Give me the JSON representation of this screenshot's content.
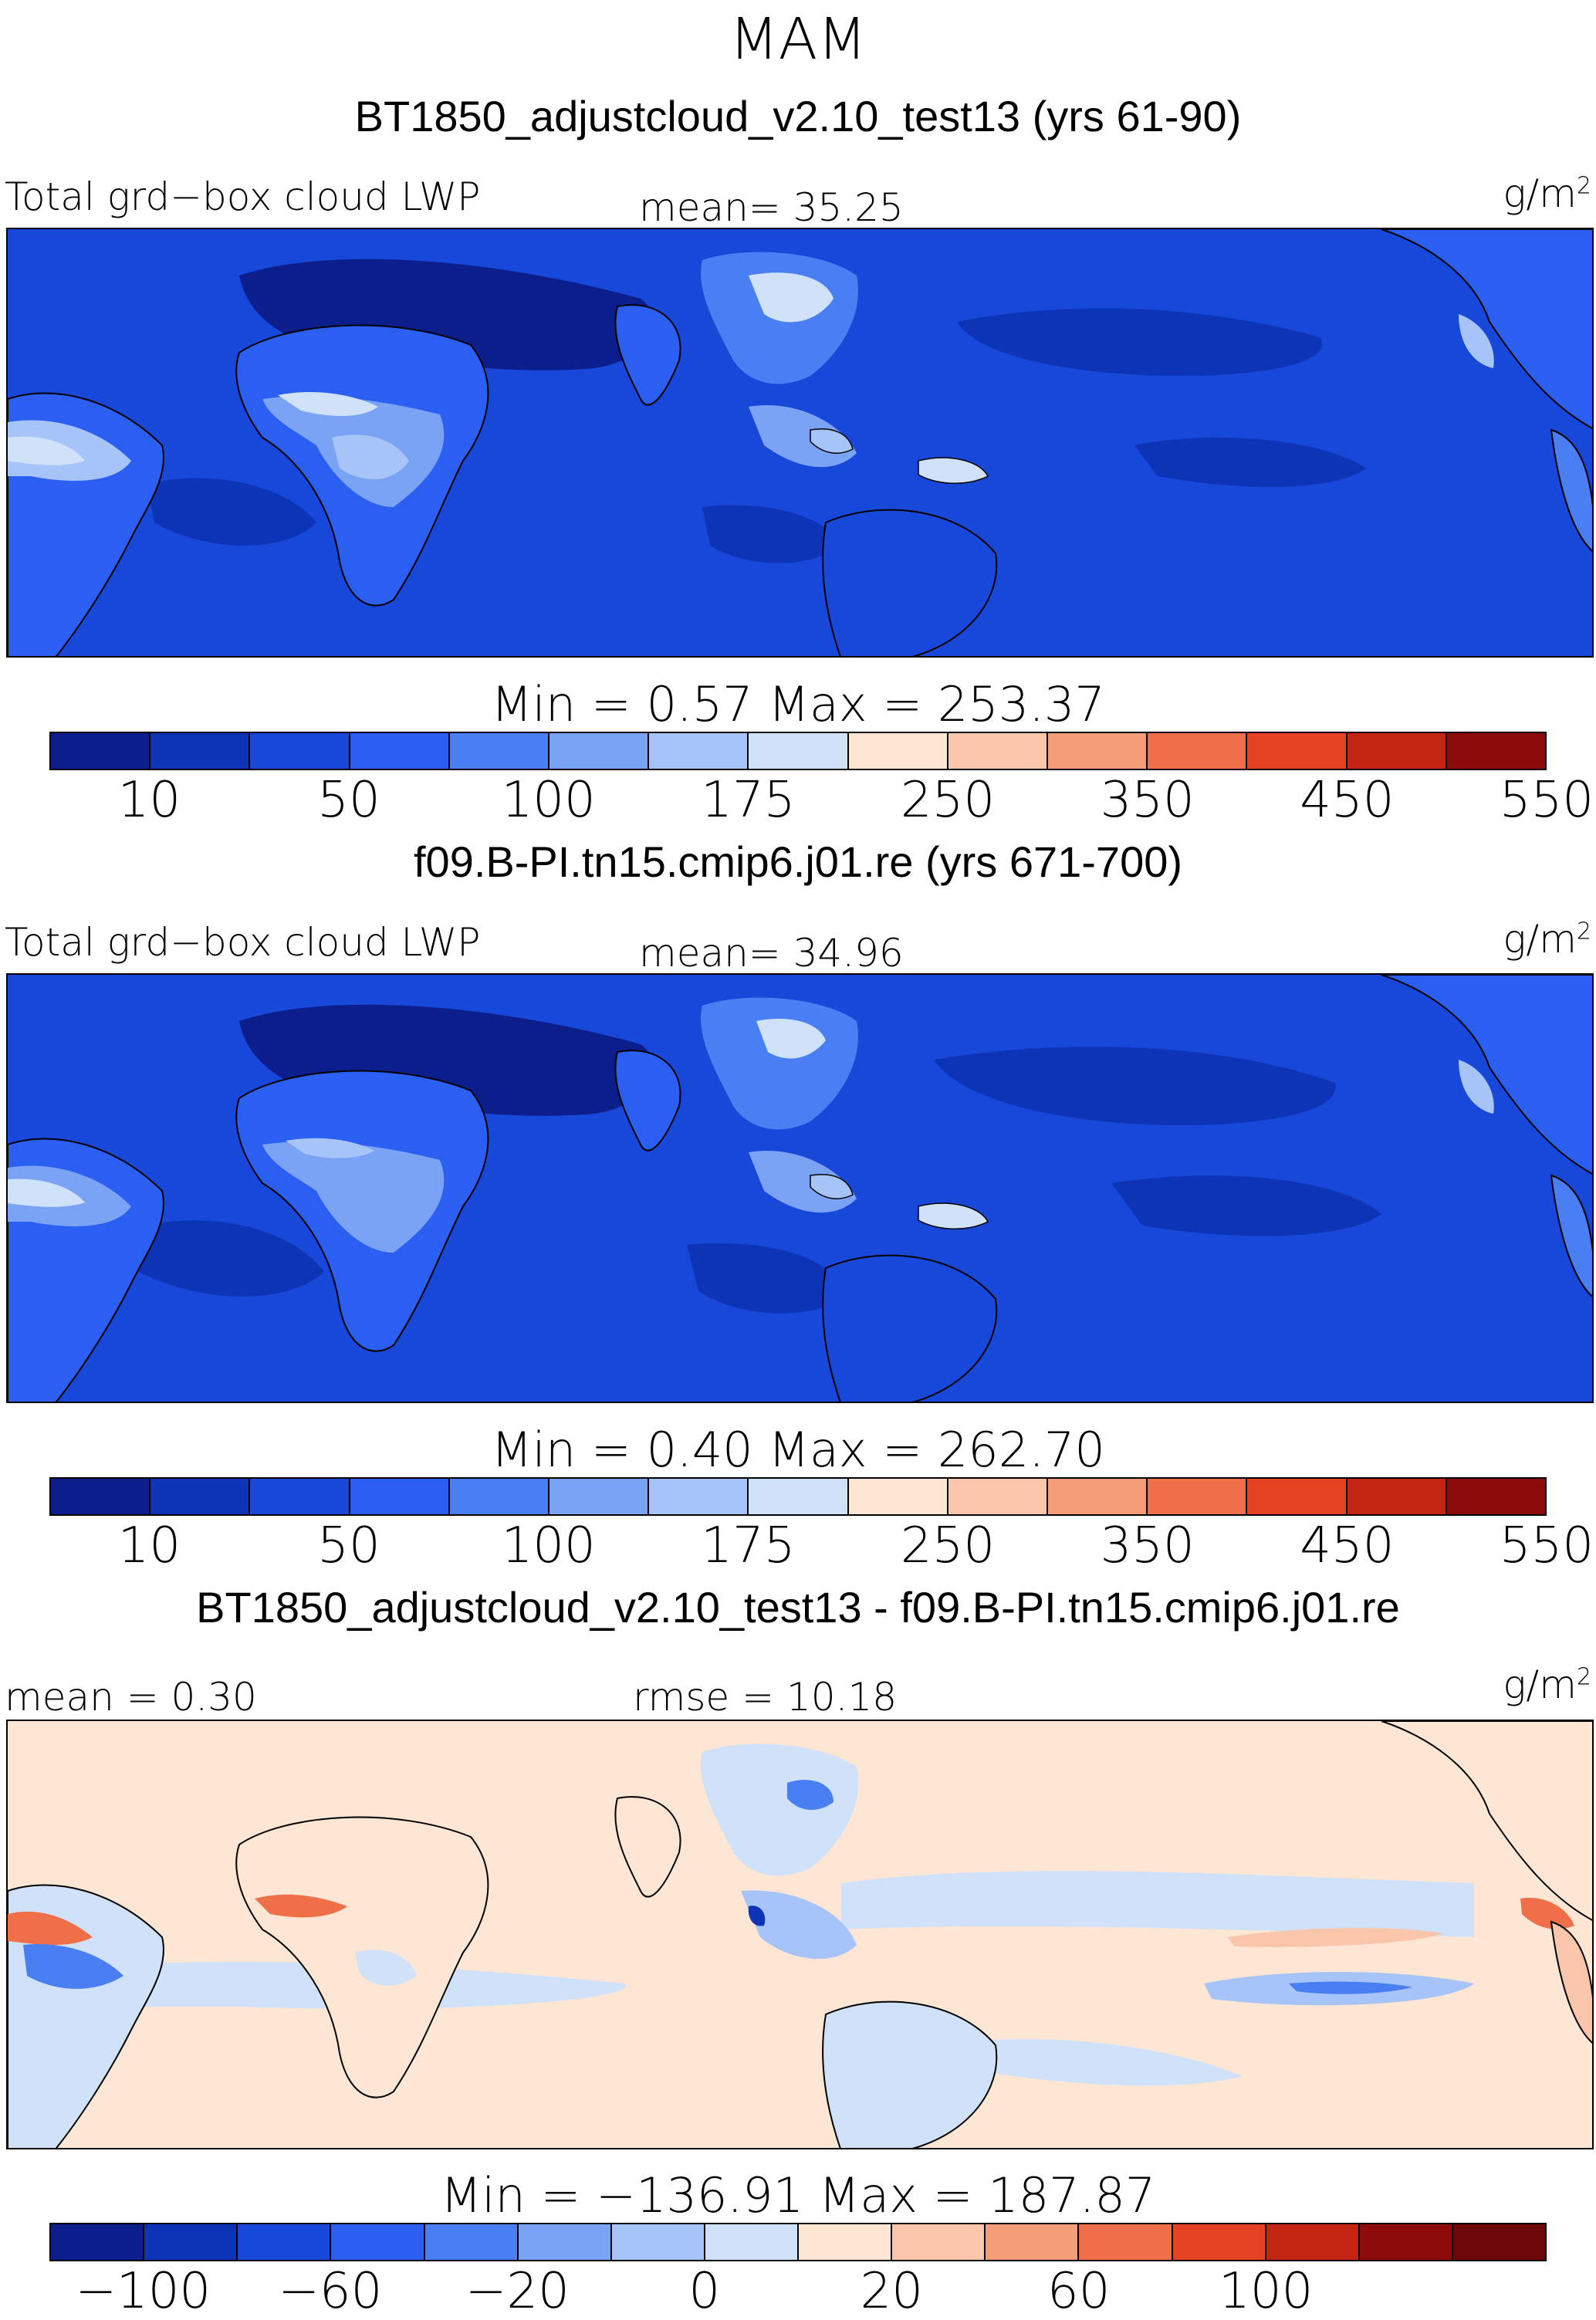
{
  "figure": {
    "season": "MAM",
    "units": "g/m",
    "units_sup": "2"
  },
  "panels": [
    {
      "title": "BT1850_adjustcloud_v2.10_test13 (yrs 61-90)",
      "left_label": "Total grd−box cloud LWP",
      "mid_label": "mean=  35.25",
      "minmax": "Min =    0.57  Max = 253.37",
      "colors": [
        "#0c1d8c",
        "#0d33b6",
        "#1748d9",
        "#2a5ff2",
        "#4a7ff3",
        "#7aa3f5",
        "#a7c4f8",
        "#d0e1fa",
        "#fde6d4",
        "#f9c6ac",
        "#f59d79",
        "#ef7048",
        "#e44222",
        "#c42513",
        "#8e0b0b"
      ],
      "ticks": [
        "10",
        "50",
        "100",
        "175",
        "250",
        "350",
        "450",
        "550"
      ]
    },
    {
      "title": "f09.B-PI.tn15.cmip6.j01.re (yrs 671-700)",
      "left_label": "Total grd−box cloud LWP",
      "mid_label": "mean=  34.96",
      "minmax": "Min =    0.40  Max = 262.70",
      "colors": [
        "#0c1d8c",
        "#0d33b6",
        "#1748d9",
        "#2a5ff2",
        "#4a7ff3",
        "#7aa3f5",
        "#a7c4f8",
        "#d0e1fa",
        "#fde6d4",
        "#f9c6ac",
        "#f59d79",
        "#ef7048",
        "#e44222",
        "#c42513",
        "#8e0b0b"
      ],
      "ticks": [
        "10",
        "50",
        "100",
        "175",
        "250",
        "350",
        "450",
        "550"
      ]
    },
    {
      "title": "BT1850_adjustcloud_v2.10_test13 - f09.B-PI.tn15.cmip6.j01.re",
      "left_label": "mean =    0.30",
      "mid_label": "rmse =   10.18",
      "minmax": "Min = −136.91  Max =  187.87",
      "colors": [
        "#0c1d8c",
        "#0d33b6",
        "#1748d9",
        "#2a5ff2",
        "#4a7ff3",
        "#7aa3f5",
        "#a7c4f8",
        "#d0e1fa",
        "#fde6d4",
        "#f9c6ac",
        "#f59d79",
        "#ef7048",
        "#e44222",
        "#c42513",
        "#8e0b0b",
        "#6e0707"
      ],
      "ticks": [
        "−100",
        "−60",
        "−20",
        "0",
        "20",
        "60",
        "100"
      ]
    }
  ]
}
